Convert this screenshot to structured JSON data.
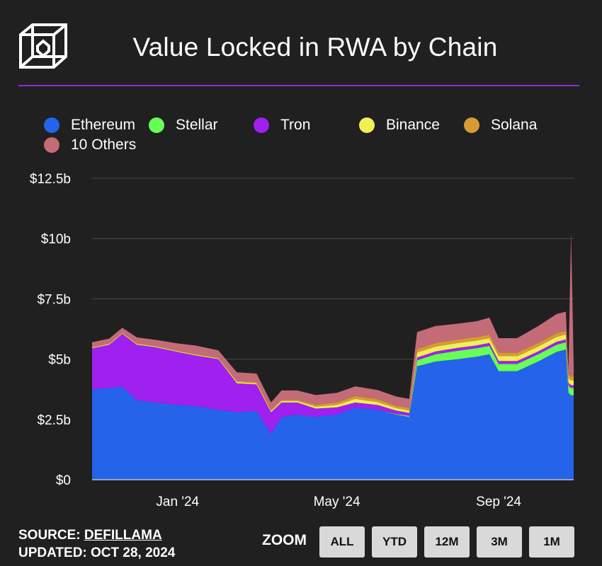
{
  "title": "Value Locked in RWA by Chain",
  "footer": {
    "source_label": "SOURCE:",
    "source_name": "DEFILLAMA",
    "updated": "UPDATED: OCT 28, 2024"
  },
  "zoom": {
    "label": "ZOOM",
    "buttons": [
      "ALL",
      "YTD",
      "12M",
      "3M",
      "1M"
    ]
  },
  "colors": {
    "background": "#202020",
    "accent_divider": "#8a2be2",
    "Ethereum": "#2563eb",
    "Stellar": "#66ff55",
    "Tron": "#a020f0",
    "Binance": "#f0f055",
    "Solana": "#d79b34",
    "10 Others": "#c46b78"
  },
  "icons": {
    "logo": "cube-logo-icon"
  },
  "chart_data": {
    "type": "area",
    "stacked": true,
    "title": "Value Locked in RWA by Chain",
    "xlabel": "",
    "ylabel": "",
    "ylim": [
      0,
      12.5
    ],
    "yticks": [
      0,
      2.5,
      5,
      7.5,
      10,
      12.5
    ],
    "ytick_labels": [
      "$0",
      "$2.5b",
      "$5b",
      "$7.5b",
      "$10b",
      "$12.5b"
    ],
    "xlim": [
      "2023-10-28",
      "2024-10-28"
    ],
    "xtick_labels": [
      {
        "date": "2024-01-01",
        "label": "Jan '24"
      },
      {
        "date": "2024-05-01",
        "label": "May '24"
      },
      {
        "date": "2024-09-01",
        "label": "Sep '24"
      }
    ],
    "grid": "horizontal",
    "legend_position": "top",
    "dates": [
      "2023-10-28",
      "2023-11-10",
      "2023-11-20",
      "2023-12-01",
      "2023-12-15",
      "2024-01-01",
      "2024-01-15",
      "2024-02-01",
      "2024-02-15",
      "2024-03-01",
      "2024-03-12",
      "2024-03-20",
      "2024-04-01",
      "2024-04-15",
      "2024-05-01",
      "2024-05-15",
      "2024-06-01",
      "2024-06-15",
      "2024-06-25",
      "2024-07-01",
      "2024-07-15",
      "2024-08-01",
      "2024-08-15",
      "2024-08-25",
      "2024-09-01",
      "2024-09-15",
      "2024-10-01",
      "2024-10-15",
      "2024-10-22",
      "2024-10-24",
      "2024-10-26",
      "2024-10-28"
    ],
    "series": [
      {
        "name": "Ethereum",
        "values": [
          3.75,
          3.8,
          3.85,
          3.3,
          3.2,
          3.1,
          3.05,
          2.9,
          2.8,
          2.85,
          1.9,
          2.6,
          2.7,
          2.6,
          2.7,
          3.0,
          2.9,
          2.7,
          2.6,
          4.7,
          4.9,
          5.0,
          5.1,
          5.2,
          4.5,
          4.5,
          4.9,
          5.3,
          5.4,
          3.6,
          3.5,
          3.5
        ]
      },
      {
        "name": "Stellar",
        "values": [
          0,
          0,
          0,
          0,
          0,
          0,
          0,
          0,
          0,
          0,
          0,
          0,
          0,
          0,
          0,
          0,
          0,
          0.02,
          0.05,
          0.25,
          0.3,
          0.35,
          0.35,
          0.35,
          0.3,
          0.3,
          0.3,
          0.3,
          0.3,
          0.3,
          0.3,
          0.3
        ]
      },
      {
        "name": "Tron",
        "values": [
          1.7,
          1.8,
          2.2,
          2.3,
          2.3,
          2.2,
          2.1,
          2.1,
          1.2,
          1.1,
          0.9,
          0.6,
          0.5,
          0.35,
          0.3,
          0.2,
          0.2,
          0.15,
          0.12,
          0.12,
          0.12,
          0.12,
          0.12,
          0.12,
          0.12,
          0.12,
          0.12,
          0.12,
          0.12,
          0.12,
          0.12,
          0.12
        ]
      },
      {
        "name": "Binance",
        "values": [
          0.03,
          0.03,
          0.03,
          0.03,
          0.03,
          0.03,
          0.03,
          0.03,
          0.05,
          0.05,
          0.05,
          0.06,
          0.06,
          0.08,
          0.1,
          0.15,
          0.12,
          0.1,
          0.1,
          0.2,
          0.2,
          0.2,
          0.2,
          0.2,
          0.2,
          0.2,
          0.2,
          0.2,
          0.2,
          0.2,
          0.2,
          0.2
        ]
      },
      {
        "name": "Solana",
        "values": [
          0.02,
          0.02,
          0.02,
          0.02,
          0.02,
          0.02,
          0.03,
          0.03,
          0.05,
          0.05,
          0.05,
          0.06,
          0.06,
          0.08,
          0.1,
          0.12,
          0.12,
          0.1,
          0.1,
          0.15,
          0.15,
          0.15,
          0.15,
          0.15,
          0.15,
          0.15,
          0.15,
          0.15,
          0.15,
          0.15,
          0.15,
          0.15
        ]
      },
      {
        "name": "10 Others",
        "values": [
          0.2,
          0.2,
          0.2,
          0.25,
          0.25,
          0.3,
          0.35,
          0.3,
          0.35,
          0.35,
          0.3,
          0.38,
          0.38,
          0.4,
          0.4,
          0.4,
          0.38,
          0.38,
          0.38,
          0.7,
          0.7,
          0.65,
          0.65,
          0.7,
          0.6,
          0.6,
          0.7,
          0.8,
          0.8,
          0.2,
          6.0,
          0.5
        ]
      }
    ]
  }
}
